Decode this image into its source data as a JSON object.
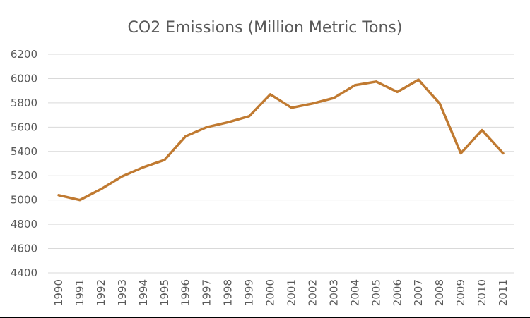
{
  "chart_data": {
    "type": "line",
    "title": "CO2 Emissions (Million Metric Tons)",
    "xlabel": "",
    "ylabel": "",
    "categories": [
      "1990",
      "1991",
      "1992",
      "1993",
      "1994",
      "1995",
      "1996",
      "1997",
      "1998",
      "1999",
      "2000",
      "2001",
      "2002",
      "2003",
      "2004",
      "2005",
      "2006",
      "2007",
      "2008",
      "2009",
      "2010",
      "2011"
    ],
    "series": [
      {
        "name": "CO2 Emissions",
        "color": "#C07A31",
        "values": [
          5040,
          5000,
          5090,
          5195,
          5270,
          5330,
          5525,
          5600,
          5640,
          5690,
          5870,
          5760,
          5795,
          5840,
          5945,
          5975,
          5890,
          5990,
          5795,
          5385,
          5575,
          5385
        ]
      }
    ],
    "ylim": [
      4400,
      6200
    ],
    "yticks": [
      4400,
      4600,
      4800,
      5000,
      5200,
      5400,
      5600,
      5800,
      6000,
      6200
    ],
    "ytick_labels": [
      "4400",
      "4600",
      "4800",
      "5000",
      "5200",
      "5400",
      "5600",
      "5800",
      "6000",
      "6200"
    ],
    "grid": true,
    "legend": "none",
    "x_tick_rotation": "vertical"
  }
}
